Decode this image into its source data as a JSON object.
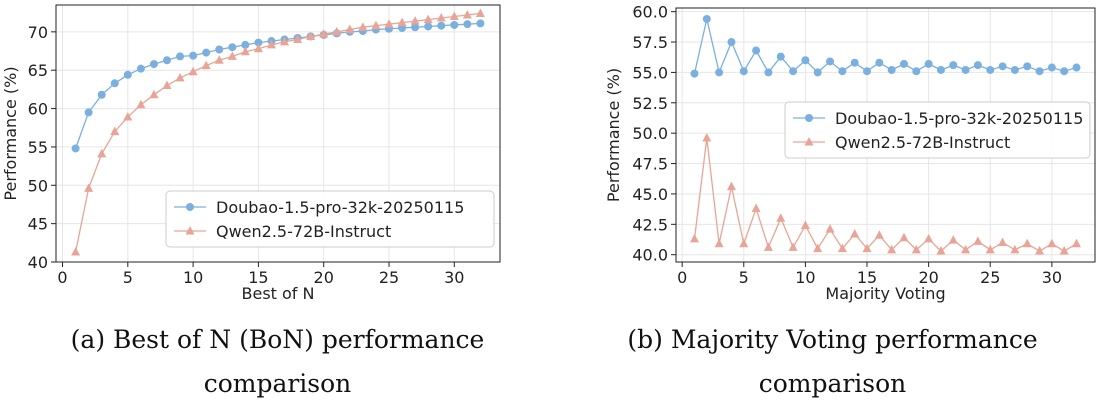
{
  "chart_data": [
    {
      "type": "line",
      "xlabel": "Best of N",
      "ylabel": "Performance (%)",
      "xlim": [
        -0.5,
        33.5
      ],
      "ylim": [
        40,
        73.5
      ],
      "xticks": [
        0,
        5,
        10,
        15,
        20,
        25,
        30
      ],
      "yticks": [
        40,
        45,
        50,
        55,
        60,
        65,
        70
      ],
      "grid": true,
      "legend": "bottom-right",
      "x": [
        1,
        2,
        3,
        4,
        5,
        6,
        7,
        8,
        9,
        10,
        11,
        12,
        13,
        14,
        15,
        16,
        17,
        18,
        19,
        20,
        21,
        22,
        23,
        24,
        25,
        26,
        27,
        28,
        29,
        30,
        31,
        32
      ],
      "series": [
        {
          "name": "Doubao-1.5-pro-32k-20250115",
          "color": "#7ab0df",
          "marker": "circle",
          "values": [
            54.8,
            59.5,
            61.8,
            63.3,
            64.4,
            65.2,
            65.8,
            66.3,
            66.8,
            66.9,
            67.3,
            67.7,
            68.0,
            68.3,
            68.6,
            68.8,
            69.0,
            69.2,
            69.4,
            69.6,
            69.8,
            70.0,
            70.1,
            70.3,
            70.4,
            70.5,
            70.6,
            70.7,
            70.8,
            70.9,
            71.0,
            71.1
          ]
        },
        {
          "name": "Qwen2.5-72B-Instruct",
          "color": "#e8a597",
          "marker": "triangle",
          "values": [
            41.3,
            49.6,
            54.1,
            57.0,
            58.9,
            60.5,
            61.8,
            63.0,
            64.0,
            64.8,
            65.6,
            66.3,
            66.8,
            67.4,
            67.8,
            68.3,
            68.7,
            69.0,
            69.4,
            69.7,
            70.0,
            70.3,
            70.6,
            70.8,
            71.0,
            71.2,
            71.4,
            71.6,
            71.8,
            72.0,
            72.2,
            72.4
          ]
        }
      ],
      "caption": "(a) Best of N (BoN) performance comparison"
    },
    {
      "type": "line",
      "xlabel": "Majority Voting",
      "ylabel": "Performance (%)",
      "xlim": [
        -0.5,
        33.5
      ],
      "ylim": [
        39.4,
        60.3
      ],
      "xticks": [
        0,
        5,
        10,
        15,
        20,
        25,
        30
      ],
      "yticks": [
        40.0,
        42.5,
        45.0,
        47.5,
        50.0,
        52.5,
        55.0,
        57.5,
        60.0
      ],
      "grid": true,
      "legend": "center-right",
      "x": [
        1,
        2,
        3,
        4,
        5,
        6,
        7,
        8,
        9,
        10,
        11,
        12,
        13,
        14,
        15,
        16,
        17,
        18,
        19,
        20,
        21,
        22,
        23,
        24,
        25,
        26,
        27,
        28,
        29,
        30,
        31,
        32
      ],
      "series": [
        {
          "name": "Doubao-1.5-pro-32k-20250115",
          "color": "#7ab0df",
          "marker": "circle",
          "values": [
            54.9,
            59.4,
            55.0,
            57.5,
            55.1,
            56.8,
            55.0,
            56.3,
            55.1,
            56.0,
            55.0,
            55.9,
            55.1,
            55.8,
            55.1,
            55.8,
            55.2,
            55.7,
            55.1,
            55.7,
            55.2,
            55.6,
            55.2,
            55.6,
            55.2,
            55.5,
            55.2,
            55.5,
            55.1,
            55.4,
            55.1,
            55.4
          ]
        },
        {
          "name": "Qwen2.5-72B-Instruct",
          "color": "#e8a597",
          "marker": "triangle",
          "values": [
            41.3,
            49.6,
            40.9,
            45.6,
            40.9,
            43.8,
            40.6,
            43.0,
            40.6,
            42.4,
            40.5,
            42.1,
            40.5,
            41.7,
            40.5,
            41.6,
            40.4,
            41.4,
            40.4,
            41.3,
            40.3,
            41.2,
            40.4,
            41.1,
            40.4,
            41.0,
            40.4,
            40.9,
            40.3,
            40.9,
            40.3,
            40.9
          ]
        }
      ],
      "caption": "(b) Majority Voting performance comparison"
    }
  ],
  "captions": {
    "a": [
      "(a) Best of N (BoN) performance",
      "comparison"
    ],
    "b": [
      "(b) Majority Voting performance",
      "comparison"
    ]
  }
}
